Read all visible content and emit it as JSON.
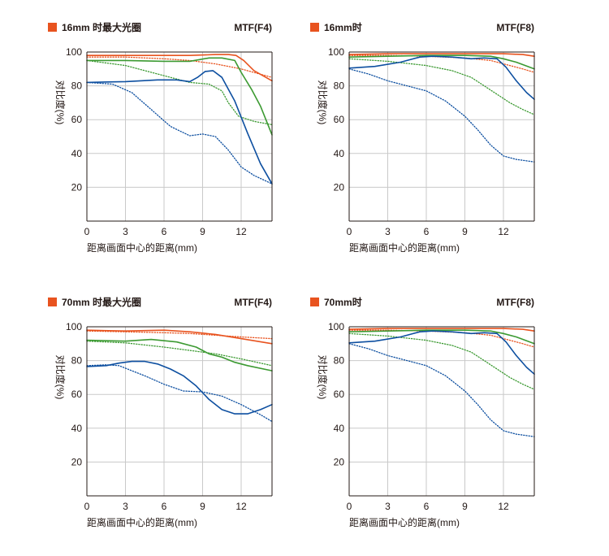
{
  "colors": {
    "orange": "#e8531f",
    "green": "#3c9a32",
    "blue": "#0d4fa0",
    "grid": "#c9c9c9",
    "frame": "#231815",
    "marker": "#e8531f"
  },
  "chart_data": [
    {
      "type": "line",
      "title": "16mm 时最大光圈",
      "mtf_label": "MTF(F4)",
      "xlabel": "距离画面中心的距离(mm)",
      "ylabel": "对比度(%)",
      "xlim": [
        0,
        14.4
      ],
      "ylim": [
        0,
        100
      ],
      "xticks": [
        0,
        3,
        6,
        9,
        12
      ],
      "yticks": [
        20,
        40,
        60,
        80,
        100
      ],
      "series": [
        {
          "name": "orange-solid",
          "color": "orange",
          "dash": false,
          "x": [
            0,
            3,
            6,
            8,
            10,
            11,
            11.6,
            12.2,
            13,
            14.4
          ],
          "y": [
            98,
            98,
            98,
            98,
            98.5,
            98.5,
            98,
            95,
            89,
            83
          ]
        },
        {
          "name": "orange-dotted",
          "color": "orange",
          "dash": true,
          "x": [
            0,
            3,
            6,
            8,
            10,
            12,
            14.4
          ],
          "y": [
            97,
            97,
            96,
            95,
            93,
            90,
            85
          ]
        },
        {
          "name": "green-solid",
          "color": "green",
          "dash": false,
          "x": [
            0,
            3,
            6,
            8,
            9.5,
            10.5,
            11.5,
            12,
            12.8,
            13.5,
            14.4
          ],
          "y": [
            95,
            95,
            94.5,
            94.5,
            96.5,
            96.5,
            95,
            88,
            78,
            68,
            51
          ]
        },
        {
          "name": "green-dotted",
          "color": "green",
          "dash": true,
          "x": [
            0,
            3,
            6,
            8,
            9.5,
            10.5,
            11,
            11.8,
            13,
            14.4
          ],
          "y": [
            95,
            92,
            86,
            82,
            81,
            77,
            70,
            62,
            59,
            57
          ]
        },
        {
          "name": "blue-solid",
          "color": "blue",
          "dash": false,
          "x": [
            0,
            3,
            5.5,
            7,
            8,
            8.6,
            9.2,
            9.8,
            10.5,
            11.5,
            12.5,
            13.5,
            14.4
          ],
          "y": [
            82,
            82.5,
            83.5,
            83.5,
            82.5,
            85,
            88.5,
            89,
            85,
            71,
            52,
            34,
            22
          ]
        },
        {
          "name": "blue-dotted",
          "color": "blue",
          "dash": true,
          "x": [
            0,
            2,
            3.5,
            5,
            6.5,
            8,
            9,
            10,
            11,
            12,
            13,
            14.4
          ],
          "y": [
            82,
            81,
            76,
            66,
            56,
            50.5,
            51.5,
            50,
            42,
            32,
            27,
            22
          ]
        }
      ]
    },
    {
      "type": "line",
      "title": "16mm时",
      "mtf_label": "MTF(F8)",
      "xlabel": "距离画面中心的距离(mm)",
      "ylabel": "对比度(%)",
      "xlim": [
        0,
        14.4
      ],
      "ylim": [
        0,
        100
      ],
      "xticks": [
        0,
        3,
        6,
        9,
        12
      ],
      "yticks": [
        20,
        40,
        60,
        80,
        100
      ],
      "series": [
        {
          "name": "orange-solid",
          "color": "orange",
          "dash": false,
          "x": [
            0,
            3,
            6,
            9,
            12,
            13.5,
            14.4
          ],
          "y": [
            98.5,
            99,
            99,
            99,
            99,
            98.5,
            97.5
          ]
        },
        {
          "name": "orange-dotted",
          "color": "orange",
          "dash": true,
          "x": [
            0,
            3,
            6,
            9,
            11,
            12.5,
            13.5,
            14.4
          ],
          "y": [
            98,
            98,
            97.5,
            96.5,
            95,
            92,
            90,
            88
          ]
        },
        {
          "name": "green-solid",
          "color": "green",
          "dash": false,
          "x": [
            0,
            3,
            6,
            9,
            11,
            12,
            13,
            14.4
          ],
          "y": [
            97,
            97.5,
            98,
            98,
            97.5,
            96,
            94,
            90
          ]
        },
        {
          "name": "green-dotted",
          "color": "green",
          "dash": true,
          "x": [
            0,
            3,
            6,
            8,
            9.5,
            10.5,
            11.5,
            12.5,
            13.5,
            14.4
          ],
          "y": [
            96,
            94.5,
            92,
            89,
            85,
            80,
            75,
            70,
            66,
            63
          ]
        },
        {
          "name": "blue-solid",
          "color": "blue",
          "dash": false,
          "x": [
            0,
            2,
            4,
            5.5,
            6.5,
            8,
            9.5,
            10.5,
            11.5,
            12.2,
            13,
            13.8,
            14.4
          ],
          "y": [
            90.5,
            91.5,
            94,
            97,
            97.5,
            97,
            96,
            96.5,
            96,
            91,
            83,
            76,
            72
          ]
        },
        {
          "name": "blue-dotted",
          "color": "blue",
          "dash": true,
          "x": [
            0,
            1.5,
            3,
            4.5,
            6,
            7.5,
            9,
            10,
            11,
            12,
            13,
            14.4
          ],
          "y": [
            90,
            87,
            83,
            80,
            77,
            71,
            62,
            54,
            45,
            38.5,
            36.5,
            35
          ]
        }
      ]
    },
    {
      "type": "line",
      "title": "70mm 时最大光圈",
      "mtf_label": "MTF(F4)",
      "xlabel": "距离画面中心的距离(mm)",
      "ylabel": "对比度(%)",
      "xlim": [
        0,
        14.4
      ],
      "ylim": [
        0,
        100
      ],
      "xticks": [
        0,
        3,
        6,
        9,
        12
      ],
      "yticks": [
        20,
        40,
        60,
        80,
        100
      ],
      "series": [
        {
          "name": "orange-solid",
          "color": "orange",
          "dash": false,
          "x": [
            0,
            3,
            6,
            8,
            10,
            12,
            14.4
          ],
          "y": [
            98,
            97.5,
            98,
            97,
            95.5,
            93,
            90
          ]
        },
        {
          "name": "orange-dotted",
          "color": "orange",
          "dash": true,
          "x": [
            0,
            3,
            6,
            8,
            10,
            12,
            14.4
          ],
          "y": [
            97.5,
            97,
            96.5,
            96,
            95,
            94,
            93
          ]
        },
        {
          "name": "green-solid",
          "color": "green",
          "dash": false,
          "x": [
            0,
            3,
            5,
            7,
            8.5,
            9.5,
            10.5,
            11.5,
            12.5,
            14.4
          ],
          "y": [
            92,
            91.5,
            92.5,
            91,
            88,
            84,
            82,
            79,
            77,
            74
          ]
        },
        {
          "name": "green-dotted",
          "color": "green",
          "dash": true,
          "x": [
            0,
            3,
            6,
            8,
            10,
            12,
            14.4
          ],
          "y": [
            91.5,
            90.5,
            88,
            86,
            84,
            81,
            77
          ]
        },
        {
          "name": "blue-solid",
          "color": "blue",
          "dash": false,
          "x": [
            0,
            1.5,
            2.5,
            3.5,
            4.5,
            5.5,
            6.5,
            7.5,
            8.5,
            9.5,
            10.5,
            11.5,
            12.5,
            13.5,
            14.4
          ],
          "y": [
            76.5,
            77,
            78.5,
            79.5,
            79.5,
            78,
            75,
            71,
            65,
            57,
            51,
            48.5,
            48.5,
            51,
            54
          ]
        },
        {
          "name": "blue-dotted",
          "color": "blue",
          "dash": true,
          "x": [
            0,
            1.5,
            2.5,
            3.5,
            4.5,
            6,
            7.5,
            9,
            10.5,
            12,
            13.5,
            14.4
          ],
          "y": [
            77,
            77.5,
            77,
            74,
            71,
            66,
            62,
            61.5,
            59,
            54,
            48,
            44
          ]
        }
      ]
    },
    {
      "type": "line",
      "title": "70mm时",
      "mtf_label": "MTF(F8)",
      "xlabel": "距离画面中心的距离(mm)",
      "ylabel": "对比度(%)",
      "xlim": [
        0,
        14.4
      ],
      "ylim": [
        0,
        100
      ],
      "xticks": [
        0,
        3,
        6,
        9,
        12
      ],
      "yticks": [
        20,
        40,
        60,
        80,
        100
      ],
      "series": [
        {
          "name": "orange-solid",
          "color": "orange",
          "dash": false,
          "x": [
            0,
            3,
            6,
            9,
            12,
            13.5,
            14.4
          ],
          "y": [
            98.5,
            99,
            99,
            99,
            99,
            98.5,
            97.5
          ]
        },
        {
          "name": "orange-dotted",
          "color": "orange",
          "dash": true,
          "x": [
            0,
            3,
            6,
            9,
            11,
            12.5,
            13.5,
            14.4
          ],
          "y": [
            98,
            98,
            97.5,
            96.5,
            95,
            92,
            90,
            88
          ]
        },
        {
          "name": "green-solid",
          "color": "green",
          "dash": false,
          "x": [
            0,
            3,
            6,
            9,
            11,
            12,
            13,
            14.4
          ],
          "y": [
            97,
            97.5,
            98,
            98,
            97.5,
            96,
            94,
            90
          ]
        },
        {
          "name": "green-dotted",
          "color": "green",
          "dash": true,
          "x": [
            0,
            3,
            6,
            8,
            9.5,
            10.5,
            11.5,
            12.5,
            13.5,
            14.4
          ],
          "y": [
            96,
            94.5,
            92,
            89,
            85,
            80,
            75,
            70,
            66,
            63
          ]
        },
        {
          "name": "blue-solid",
          "color": "blue",
          "dash": false,
          "x": [
            0,
            2,
            4,
            5.5,
            6.5,
            8,
            9.5,
            10.5,
            11.5,
            12.2,
            13,
            13.8,
            14.4
          ],
          "y": [
            90.5,
            91.5,
            94,
            97,
            97.5,
            97,
            96,
            96.5,
            96,
            91,
            83,
            76,
            72
          ]
        },
        {
          "name": "blue-dotted",
          "color": "blue",
          "dash": true,
          "x": [
            0,
            1.5,
            3,
            4.5,
            6,
            7.5,
            9,
            10,
            11,
            12,
            13,
            14.4
          ],
          "y": [
            90,
            87,
            83,
            80,
            77,
            71,
            62,
            54,
            45,
            38.5,
            36.5,
            35
          ]
        }
      ]
    }
  ]
}
